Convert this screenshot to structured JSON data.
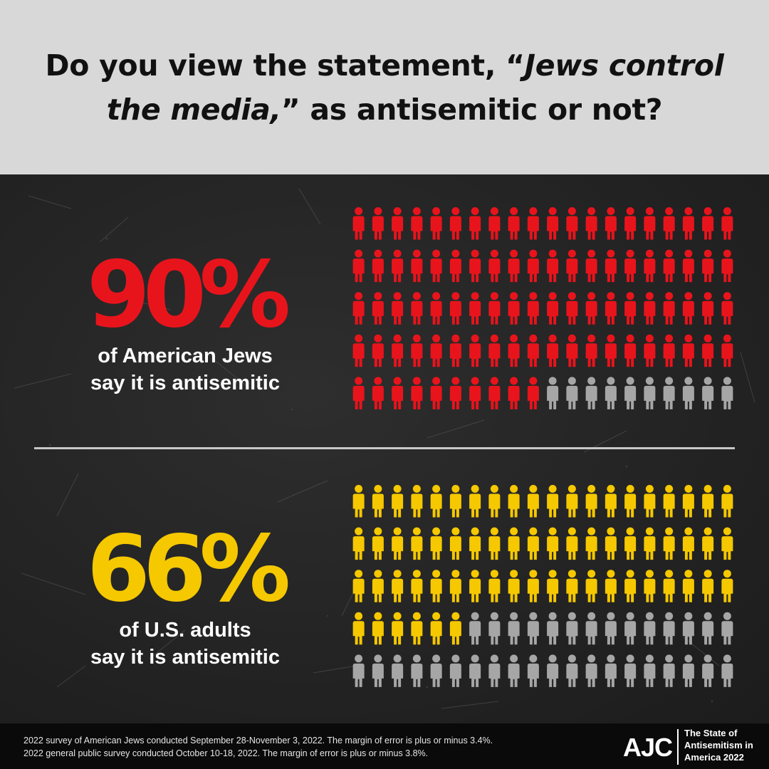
{
  "header": {
    "question_part1": "Do you view the statement, “",
    "question_italic": "Jews control the media,",
    "question_part2": "” as antisemitic or not?"
  },
  "stats": [
    {
      "id": "jews",
      "percent_label": "90%",
      "line1": "of American Jews",
      "line2": "say it is antisemitic",
      "color": "#e8141c"
    },
    {
      "id": "adults",
      "percent_label": "66%",
      "line1": "of U.S. adults",
      "line2": "say it is antisemitic",
      "color": "#f5c800"
    }
  ],
  "chart_data": [
    {
      "type": "pictogram",
      "rows": 5,
      "columns": 20,
      "total_icons": 100,
      "filled_icons": 90,
      "filled_color": "#e8141c",
      "empty_color": "#a6a6a6"
    },
    {
      "type": "pictogram",
      "rows": 5,
      "columns": 20,
      "total_icons": 100,
      "filled_icons": 66,
      "filled_color": "#f5c800",
      "empty_color": "#a6a6a6"
    }
  ],
  "footer": {
    "note1": "2022 survey of American Jews conducted September 28-November 3, 2022. The margin of error is plus or minus 3.4%.",
    "note2": "2022 general public survey conducted October 10-18, 2022. The margin of error is plus or minus 3.8%.",
    "logo": "AJC",
    "tag_line1": "The State of",
    "tag_line2": "Antisemitism in",
    "tag_line3": "America 2022"
  },
  "colors": {
    "header_bg": "#d8d8d8",
    "panel_bg": "#232323",
    "divider": "#c8c8c8",
    "footer_bg": "#0a0a0a"
  }
}
